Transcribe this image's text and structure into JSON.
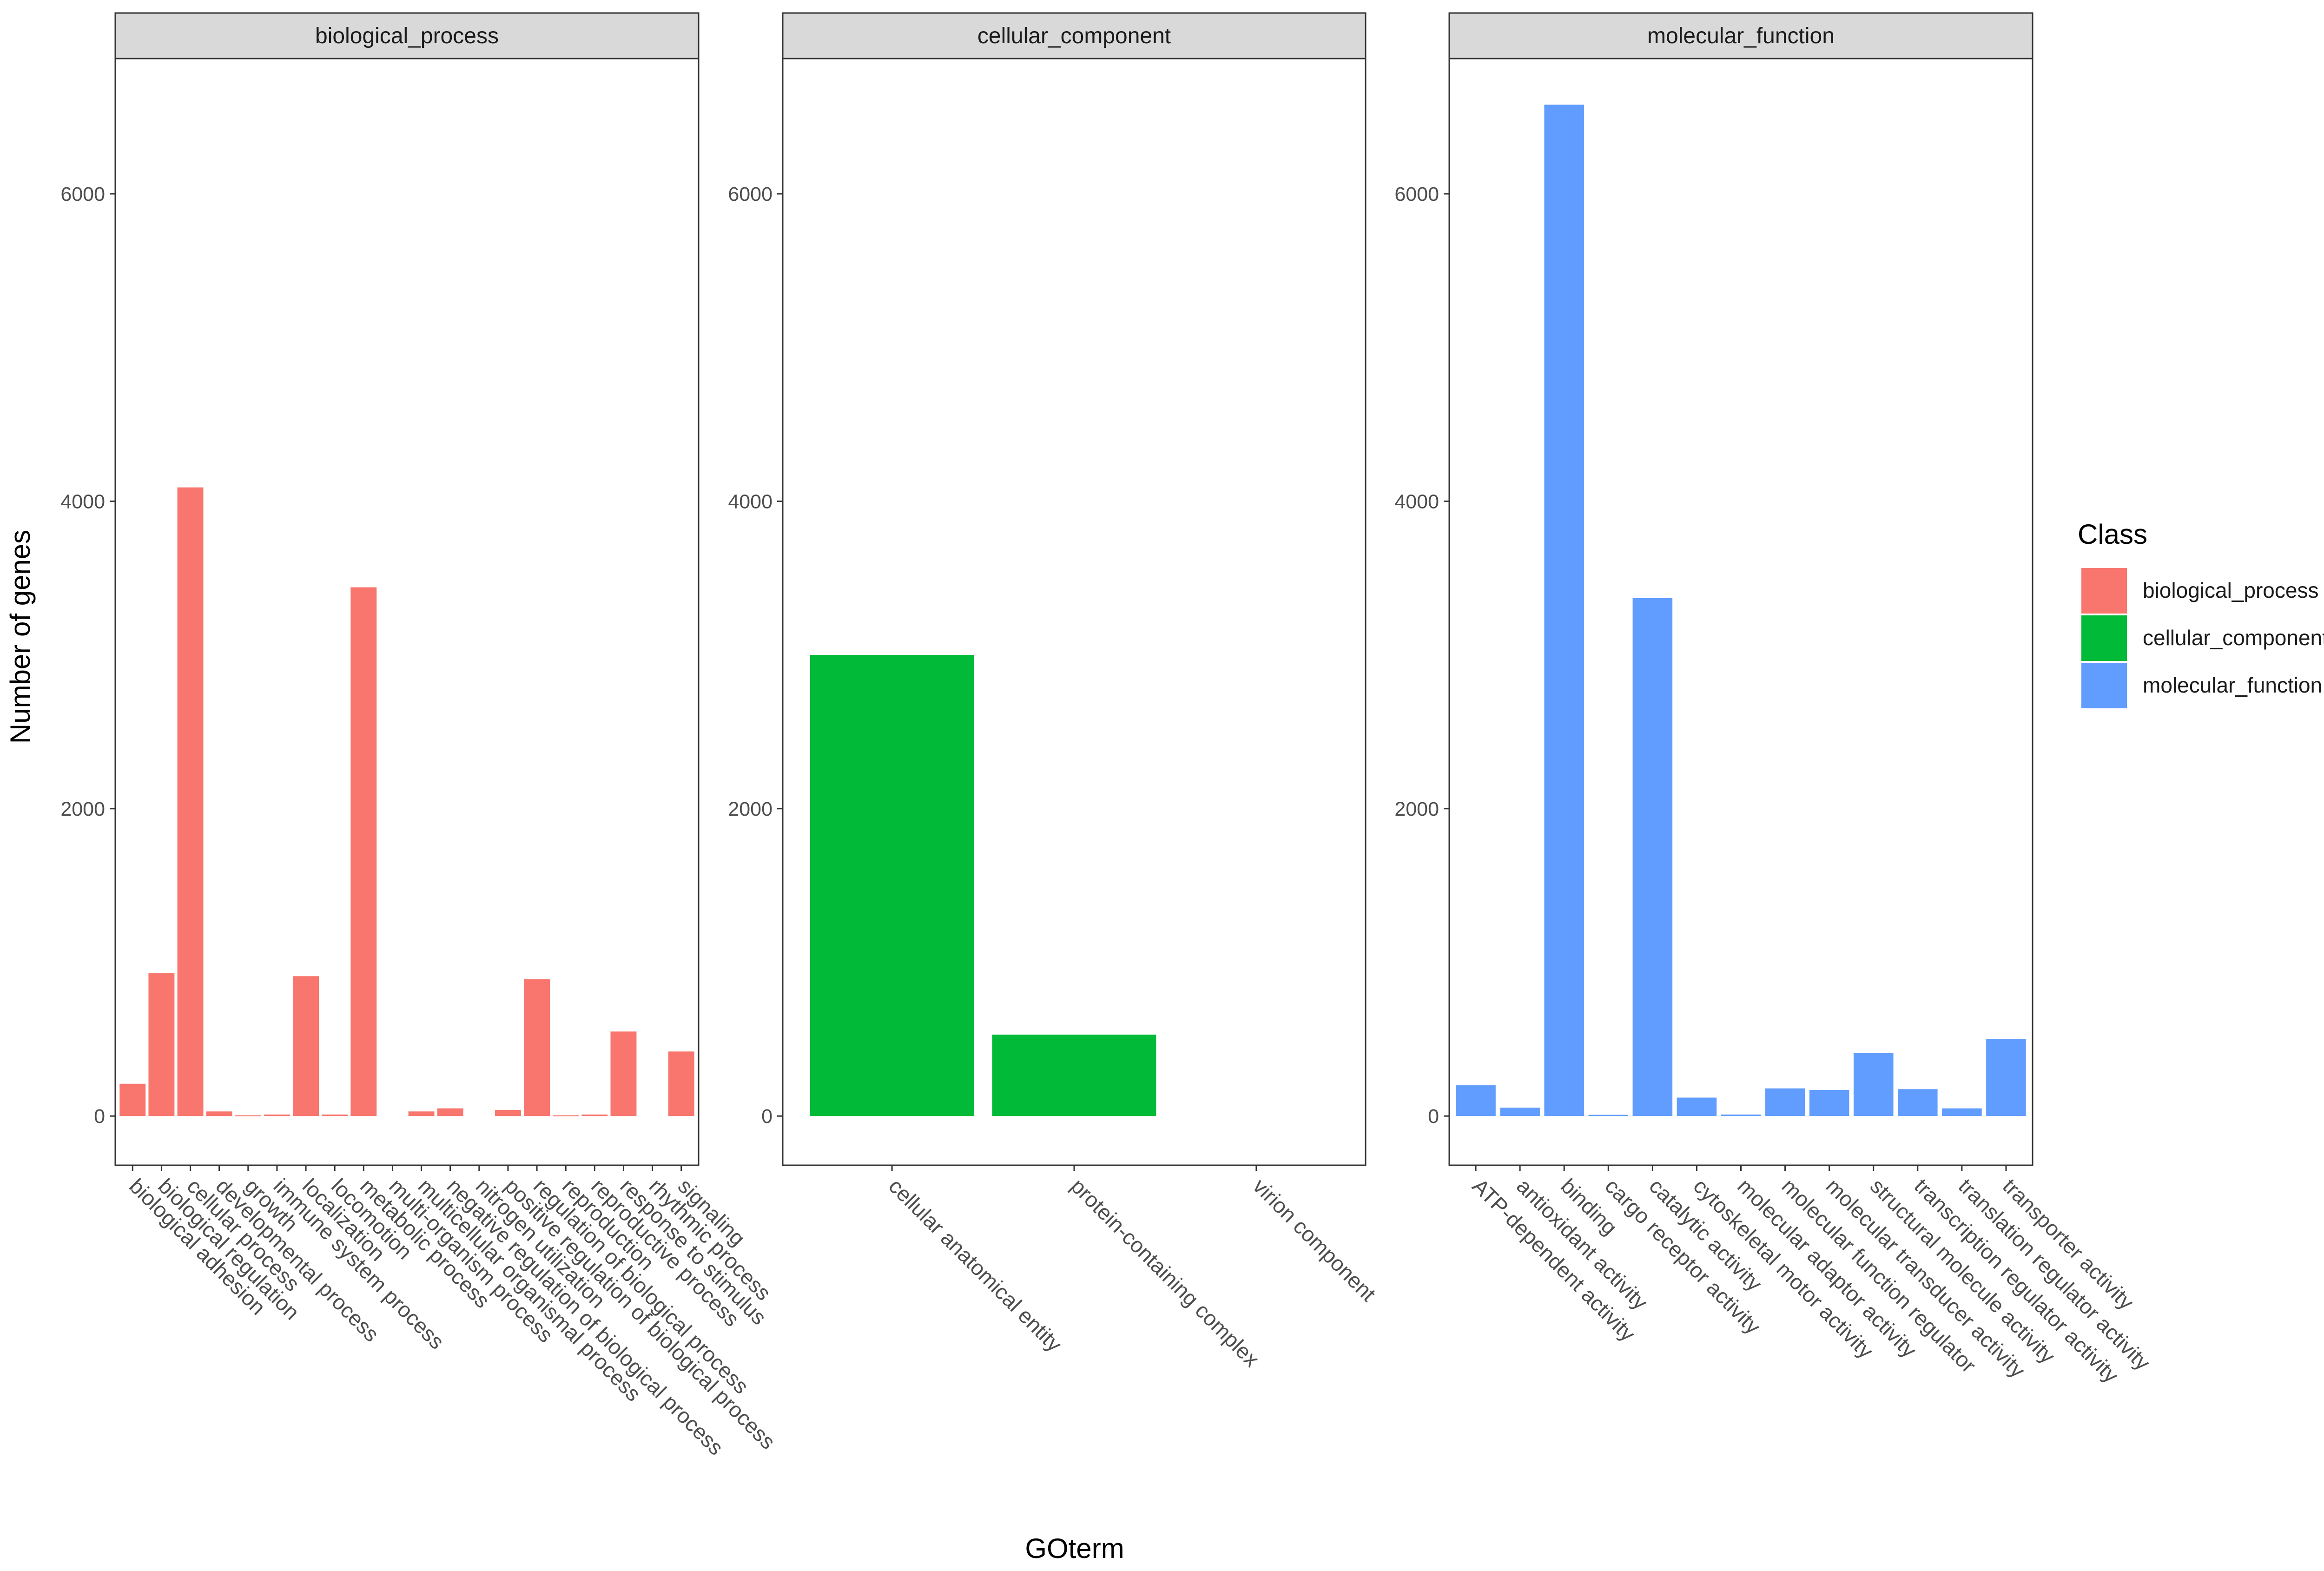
{
  "chart_data": {
    "type": "bar",
    "xlabel": "GOterm",
    "ylabel": "Number of genes",
    "ylim": [
      -320,
      6880
    ],
    "y_ticks": [
      0,
      2000,
      4000,
      6000
    ],
    "y_tick_labels": [
      "0",
      "2000",
      "4000",
      "6000"
    ],
    "grid": false,
    "facet_scales": "free_x",
    "legend": {
      "title": "Class",
      "position": "right",
      "entries": [
        {
          "label": "biological_process",
          "color": "#F8766D"
        },
        {
          "label": "cellular_component",
          "color": "#00BA38"
        },
        {
          "label": "molecular_function",
          "color": "#619CFF"
        }
      ]
    },
    "panels": [
      {
        "strip": "biological_process",
        "color": "#F8766D",
        "categories": [
          "biological adhesion",
          "biological regulation",
          "cellular process",
          "developmental process",
          "growth",
          "immune system process",
          "localization",
          "locomotion",
          "metabolic process",
          "multi-organism process",
          "multicellular organismal process",
          "negative regulation of biological process",
          "nitrogen utilization",
          "positive regulation of biological process",
          "regulation of biological process",
          "reproduction",
          "reproductive process",
          "response to stimulus",
          "rhythmic process",
          "signaling"
        ],
        "values": [
          210,
          930,
          4090,
          30,
          5,
          10,
          910,
          10,
          3440,
          0,
          30,
          50,
          0,
          40,
          890,
          5,
          10,
          550,
          0,
          420
        ]
      },
      {
        "strip": "cellular_component",
        "color": "#00BA38",
        "categories": [
          "cellular anatomical entity",
          "protein-containing complex",
          "virion component"
        ],
        "values": [
          3000,
          530,
          0
        ]
      },
      {
        "strip": "molecular_function",
        "color": "#619CFF",
        "categories": [
          "ATP-dependent activity",
          "antioxidant activity",
          "binding",
          "cargo receptor activity",
          "catalytic activity",
          "cytoskeletal motor activity",
          "molecular adaptor activity",
          "molecular function regulator",
          "molecular transducer activity",
          "structural molecule activity",
          "transcription regulator activity",
          "translation regulator activity",
          "transporter activity"
        ],
        "values": [
          200,
          55,
          6580,
          8,
          3370,
          120,
          10,
          180,
          170,
          410,
          175,
          50,
          500
        ]
      }
    ]
  }
}
